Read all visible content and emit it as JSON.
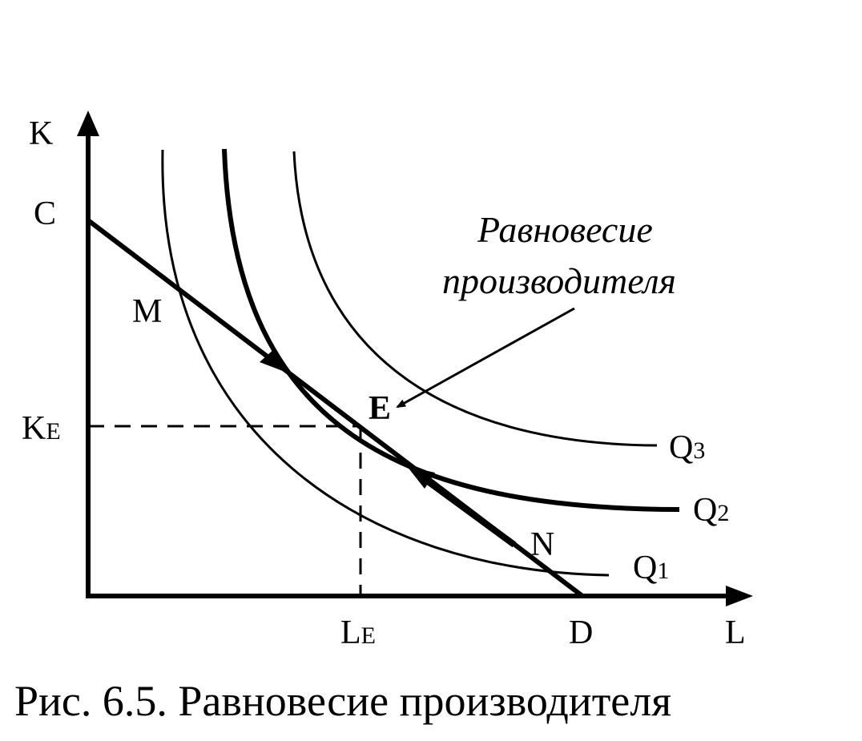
{
  "axes": {
    "y_label": "K",
    "x_label": "L"
  },
  "points": {
    "C": "C",
    "M": "M",
    "E": "E",
    "N": "N",
    "D": "D"
  },
  "equilibrium": {
    "k_main": "K",
    "k_sub": "E",
    "l_main": "L",
    "l_sub": "E"
  },
  "curves": {
    "q1_main": "Q",
    "q1_sub": "1",
    "q2_main": "Q",
    "q2_sub": "2",
    "q3_main": "Q",
    "q3_sub": "3"
  },
  "annotation": {
    "line1": "Равновесие",
    "line2": "производителя"
  },
  "caption": "Рис. 6.5. Равновесие производителя"
}
